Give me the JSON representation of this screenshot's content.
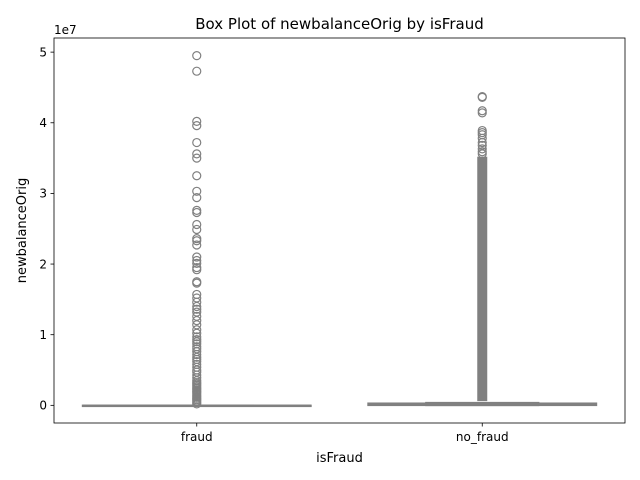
{
  "chart_data": {
    "type": "box",
    "title": "Box Plot of newbalanceOrig by isFraud",
    "xlabel": "isFraud",
    "ylabel": "newbalanceOrig",
    "y_offset_label": "1e7",
    "y_tick_labels": [
      "0",
      "1",
      "2",
      "3",
      "4",
      "5"
    ],
    "y_ticks": [
      0,
      10000000,
      20000000,
      30000000,
      40000000,
      50000000
    ],
    "ylim": [
      -2500000,
      52000000
    ],
    "categories": [
      "fraud",
      "no_fraud"
    ],
    "color": "#808080",
    "grid": false,
    "boxes": [
      {
        "category": "fraud",
        "q1": 0,
        "median": 0,
        "q3": 0,
        "whisker_low": 0,
        "whisker_high": 0,
        "outliers": [
          49500000,
          47300000,
          40200000,
          39600000,
          37200000,
          35600000,
          35000000,
          32500000,
          30300000,
          29400000,
          27600000,
          27300000,
          25600000,
          24900000,
          23600000,
          23300000,
          22700000,
          21000000,
          20500000,
          20100000,
          19500000,
          19200000,
          17500000,
          17300000,
          15700000,
          15200000,
          14600000,
          14000000,
          13600000,
          13200000,
          12600000,
          12000000,
          11400000,
          10700000,
          10200000,
          9700000,
          9300000,
          9000000,
          8700000,
          8300000,
          8000000,
          7600000,
          7200000,
          6800000,
          6500000,
          6200000,
          5800000,
          5400000,
          5000000,
          4700000,
          4300000,
          3900000,
          3500000,
          3200000,
          3000000,
          2800000,
          2600000,
          2400000,
          2200000,
          2000000,
          1800000,
          1600000,
          1400000,
          1200000,
          1000000,
          800000,
          600000,
          400000,
          200000
        ]
      },
      {
        "category": "no_fraud",
        "q1": 0,
        "median": 150000,
        "q3": 300000,
        "whisker_low": 0,
        "whisker_high": 380000,
        "outlier_band": [
          600000,
          35200000
        ],
        "outliers": [
          43700000,
          43600000,
          41700000,
          41400000,
          38900000,
          38600000,
          38300000,
          37800000,
          37200000,
          36800000,
          36300000,
          35900000,
          35600000
        ]
      }
    ]
  }
}
